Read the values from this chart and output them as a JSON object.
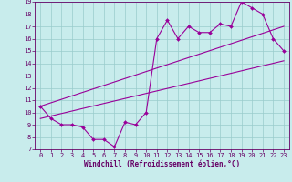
{
  "title": "",
  "xlabel": "Windchill (Refroidissement éolien,°C)",
  "ylabel": "",
  "bg_color": "#c8ecec",
  "line_color": "#990099",
  "grid_color": "#99cccc",
  "line1_x": [
    0,
    1,
    2,
    3,
    4,
    5,
    6,
    7,
    8,
    9,
    10,
    11,
    12,
    13,
    14,
    15,
    16,
    17,
    18,
    19,
    20,
    21,
    22,
    23
  ],
  "line1_y": [
    10.5,
    9.5,
    9.0,
    9.0,
    8.8,
    7.8,
    7.8,
    7.2,
    9.2,
    9.0,
    10.0,
    16.0,
    17.5,
    16.0,
    17.0,
    16.5,
    16.5,
    17.2,
    17.0,
    19.0,
    18.5,
    18.0,
    16.0,
    15.0
  ],
  "line2_x": [
    0,
    23
  ],
  "line2_y": [
    9.5,
    14.2
  ],
  "line3_x": [
    0,
    23
  ],
  "line3_y": [
    10.5,
    17.0
  ],
  "xlim": [
    -0.5,
    23.5
  ],
  "ylim": [
    7,
    19
  ],
  "xticks": [
    0,
    1,
    2,
    3,
    4,
    5,
    6,
    7,
    8,
    9,
    10,
    11,
    12,
    13,
    14,
    15,
    16,
    17,
    18,
    19,
    20,
    21,
    22,
    23
  ],
  "yticks": [
    7,
    8,
    9,
    10,
    11,
    12,
    13,
    14,
    15,
    16,
    17,
    18,
    19
  ],
  "tick_color": "#660066",
  "tick_fontsize": 5,
  "xlabel_fontsize": 5.5
}
